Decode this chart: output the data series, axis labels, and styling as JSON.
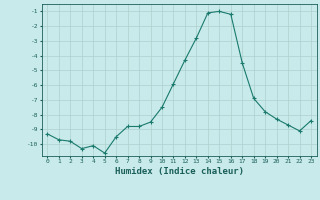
{
  "x": [
    0,
    1,
    2,
    3,
    4,
    5,
    6,
    7,
    8,
    9,
    10,
    11,
    12,
    13,
    14,
    15,
    16,
    17,
    18,
    19,
    20,
    21,
    22,
    23
  ],
  "y": [
    -9.3,
    -9.7,
    -9.8,
    -10.3,
    -10.1,
    -10.6,
    -9.5,
    -8.8,
    -8.8,
    -8.5,
    -7.5,
    -5.9,
    -4.3,
    -2.8,
    -1.1,
    -1.0,
    -1.2,
    -4.5,
    -6.9,
    -7.8,
    -8.3,
    -8.7,
    -9.1,
    -8.4
  ],
  "xlabel": "Humidex (Indice chaleur)",
  "ylim": [
    -10.8,
    -0.5
  ],
  "xlim": [
    -0.5,
    23.5
  ],
  "yticks": [
    -1,
    -2,
    -3,
    -4,
    -5,
    -6,
    -7,
    -8,
    -9,
    -10
  ],
  "xticks": [
    0,
    1,
    2,
    3,
    4,
    5,
    6,
    7,
    8,
    9,
    10,
    11,
    12,
    13,
    14,
    15,
    16,
    17,
    18,
    19,
    20,
    21,
    22,
    23
  ],
  "line_color": "#1a7a6e",
  "marker": "+",
  "marker_size": 3,
  "bg_color": "#c8eaea",
  "grid_color": "#aed0cc",
  "tick_color": "#1a5f5a",
  "label_color": "#1a5f5a",
  "ytick_labels": [
    "-1",
    "-2",
    "-3",
    "-4",
    "-5",
    "-6",
    "-7",
    "-8",
    "-9",
    "-10"
  ]
}
